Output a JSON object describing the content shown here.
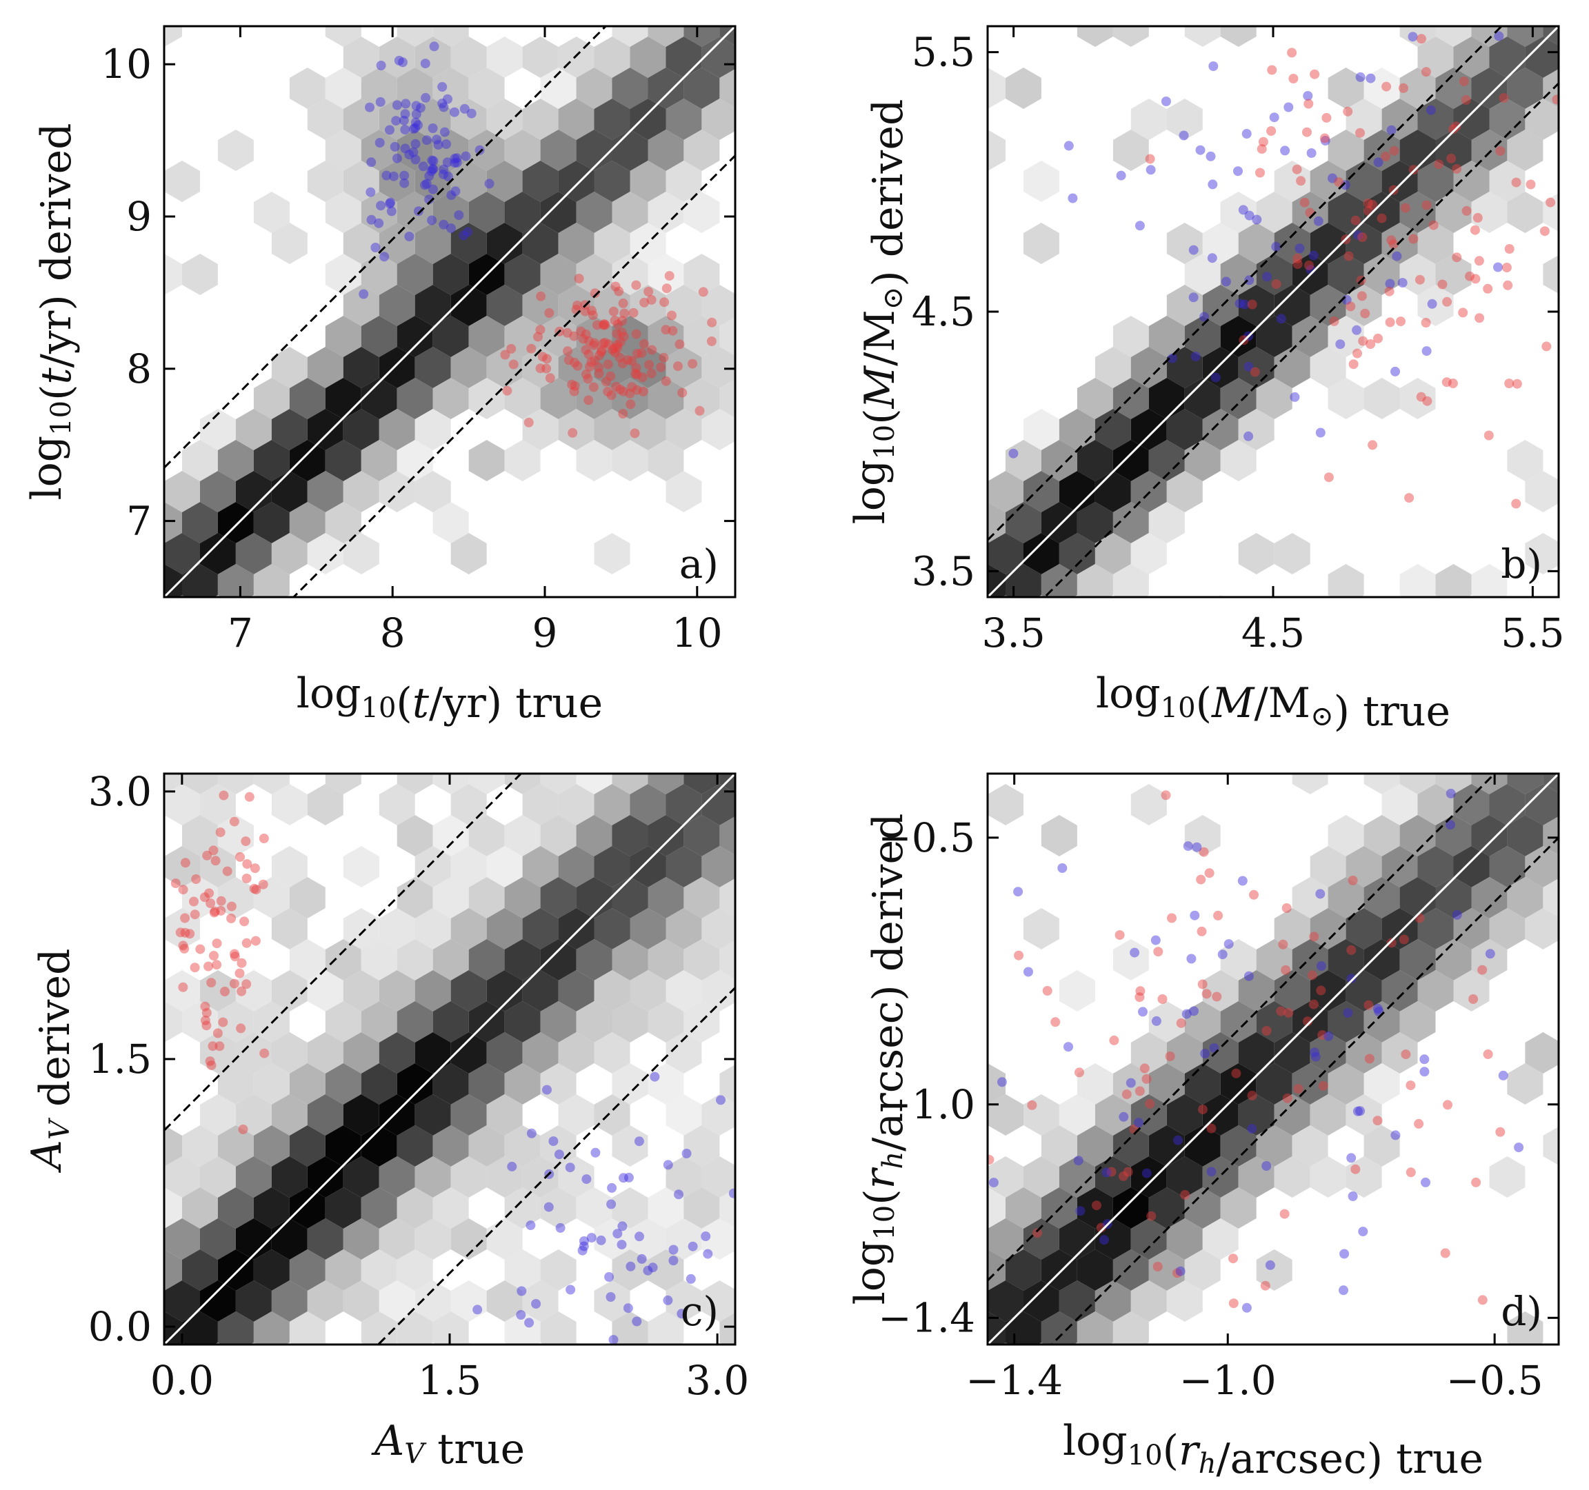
{
  "figure": {
    "background": "#ffffff",
    "hex_cmap": "gray_r",
    "contamination_colors": {
      "blue": "#3a2bdc",
      "red": "#e83b3b"
    }
  },
  "chart_data": [
    {
      "type": "scatter",
      "panel_tag": "a)",
      "xlabel": "log10(t/yr) true",
      "ylabel": "log10(t/yr) derived",
      "xlim": [
        6.5,
        10.25
      ],
      "ylim": [
        6.5,
        10.25
      ],
      "xticks": [
        7,
        8,
        9,
        10
      ],
      "xtick_labels": [
        "7",
        "8",
        "9",
        "10"
      ],
      "yticks": [
        7,
        8,
        9,
        10
      ],
      "ytick_labels": [
        "7",
        "8",
        "9",
        "10"
      ],
      "grid": false,
      "legend": "none",
      "identity_line": {
        "slope": 1,
        "offset": 0,
        "color": "#ffffff"
      },
      "tolerance_lines": [
        {
          "offset": 0.85,
          "style": "dashed"
        },
        {
          "offset": -0.85,
          "style": "dashed"
        }
      ],
      "density": {
        "x_min": 6.5,
        "x_max": 10.25,
        "y_min": 6.5,
        "y_max": 10.25,
        "spread": 0.33,
        "background": 0.04,
        "scatter_prob": 0.15,
        "blobs": [
          {
            "x": 8.2,
            "y": 9.35,
            "sx": 0.35,
            "sy": 0.5,
            "w": 0.4
          },
          {
            "x": 9.5,
            "y": 8.0,
            "sx": 0.45,
            "sy": 0.35,
            "w": 0.45
          }
        ]
      },
      "scatter": [
        {
          "name": "blue",
          "color": "#3a2bdc",
          "count": 90,
          "cx": 8.2,
          "cy": 9.35,
          "sx": 0.2,
          "sy": 0.3
        },
        {
          "name": "red",
          "color": "#e83b3b",
          "count": 130,
          "cx": 9.45,
          "cy": 8.15,
          "sx": 0.3,
          "sy": 0.22
        }
      ]
    },
    {
      "type": "scatter",
      "panel_tag": "b)",
      "xlabel": "log10(M/M⊙) true",
      "ylabel": "log10(M/M⊙) derived",
      "xlim": [
        3.4,
        5.6
      ],
      "ylim": [
        3.4,
        5.6
      ],
      "xticks": [
        3.5,
        4.5,
        5.5
      ],
      "xtick_labels": [
        "3.5",
        "4.5",
        "5.5"
      ],
      "yticks": [
        3.5,
        4.5,
        5.5
      ],
      "ytick_labels": [
        "3.5",
        "4.5",
        "5.5"
      ],
      "grid": false,
      "legend": "none",
      "identity_line": {
        "slope": 1,
        "offset": 0,
        "color": "#ffffff"
      },
      "tolerance_lines": [
        {
          "offset": 0.22,
          "style": "dashed"
        },
        {
          "offset": -0.22,
          "style": "dashed"
        }
      ],
      "density": {
        "x_min": 3.4,
        "x_max": 5.6,
        "y_min": 3.4,
        "y_max": 5.6,
        "spread": 0.2,
        "background": 0.03,
        "scatter_prob": 0.22,
        "blobs": []
      },
      "scatter": [
        {
          "name": "blue",
          "color": "#3a2bdc",
          "count": 70,
          "cx": 4.6,
          "cy": 4.7,
          "sx": 0.45,
          "sy": 0.45
        },
        {
          "name": "red",
          "color": "#e83b3b",
          "count": 110,
          "cx": 5.0,
          "cy": 4.85,
          "sx": 0.35,
          "sy": 0.4
        }
      ]
    },
    {
      "type": "scatter",
      "panel_tag": "c)",
      "xlabel": "AV true",
      "ylabel": "AV derived",
      "xlim": [
        -0.1,
        3.1
      ],
      "ylim": [
        -0.1,
        3.1
      ],
      "xticks": [
        0.0,
        1.5,
        3.0
      ],
      "xtick_labels": [
        "0.0",
        "1.5",
        "3.0"
      ],
      "yticks": [
        0.0,
        1.5,
        3.0
      ],
      "ytick_labels": [
        "0.0",
        "1.5",
        "3.0"
      ],
      "grid": false,
      "legend": "none",
      "identity_line": {
        "slope": 1,
        "offset": 0,
        "color": "#ffffff"
      },
      "tolerance_lines": [
        {
          "offset": 1.2,
          "style": "dashed"
        },
        {
          "offset": -1.2,
          "style": "dashed"
        }
      ],
      "density": {
        "x_min": -0.1,
        "x_max": 3.1,
        "y_min": -0.1,
        "y_max": 3.1,
        "spread": 0.35,
        "background": 0.12,
        "scatter_prob": 0.35,
        "blobs": []
      },
      "scatter": [
        {
          "name": "red",
          "color": "#e83b3b",
          "count": 75,
          "cx": 0.2,
          "cy": 2.35,
          "sx": 0.15,
          "sy": 0.45
        },
        {
          "name": "blue",
          "color": "#3a2bdc",
          "count": 60,
          "cx": 2.35,
          "cy": 0.55,
          "sx": 0.45,
          "sy": 0.4
        }
      ]
    },
    {
      "type": "scatter",
      "panel_tag": "d)",
      "xlabel": "log10(rh/arcsec) true",
      "ylabel": "log10(rh/arcsec) derived",
      "xlim": [
        -1.45,
        -0.38
      ],
      "ylim": [
        -1.45,
        -0.38
      ],
      "xticks": [
        -1.4,
        -1.0,
        -0.5
      ],
      "xtick_labels": [
        "−1.4",
        "−1.0",
        "−0.5"
      ],
      "yticks": [
        -1.4,
        -1.0,
        -0.5
      ],
      "ytick_labels": [
        "−1.4",
        "−1.0",
        "−0.5"
      ],
      "grid": false,
      "legend": "none",
      "identity_line": {
        "slope": 1,
        "offset": 0,
        "color": "#ffffff"
      },
      "tolerance_lines": [
        {
          "offset": 0.12,
          "style": "dashed"
        },
        {
          "offset": -0.12,
          "style": "dashed"
        }
      ],
      "density": {
        "x_min": -1.45,
        "x_max": -0.38,
        "y_min": -1.45,
        "y_max": -0.38,
        "spread": 0.12,
        "background": 0.03,
        "scatter_prob": 0.15,
        "blobs": []
      },
      "scatter": [
        {
          "name": "red",
          "color": "#e83b3b",
          "count": 95,
          "cx": -0.95,
          "cy": -0.95,
          "sx": 0.25,
          "sy": 0.25
        },
        {
          "name": "blue",
          "color": "#3a2bdc",
          "count": 70,
          "cx": -0.95,
          "cy": -0.98,
          "sx": 0.25,
          "sy": 0.25
        }
      ]
    }
  ]
}
